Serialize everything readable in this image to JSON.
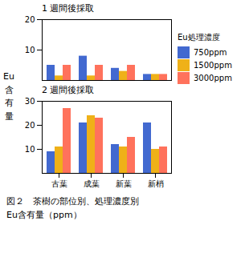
{
  "chart_data": [
    {
      "type": "bar",
      "title": "1 週間後採取",
      "categories": [
        "古葉",
        "成葉",
        "新葉",
        "新梢"
      ],
      "series": [
        {
          "name": "750ppm",
          "values": [
            5.0,
            8.0,
            4.0,
            2.0
          ]
        },
        {
          "name": "1500ppm",
          "values": [
            1.5,
            1.5,
            3.0,
            2.0
          ]
        },
        {
          "name": "3000ppm",
          "values": [
            5.0,
            5.0,
            5.0,
            2.0
          ]
        }
      ],
      "ylim": [
        0,
        20
      ],
      "yticks": [
        10,
        20
      ],
      "tick_labels": "y",
      "ylabel": "Eu\n含\n有\n量",
      "legend": "right",
      "legend_title": "Eu処理濃度"
    },
    {
      "type": "bar",
      "title": "2 週間後採取",
      "categories": [
        "古葉",
        "成葉",
        "新葉",
        "新梢"
      ],
      "series": [
        {
          "name": "750ppm",
          "values": [
            9.0,
            21.0,
            12.0,
            21.0
          ]
        },
        {
          "name": "1500ppm",
          "values": [
            11.0,
            24.0,
            11.0,
            10.0
          ]
        },
        {
          "name": "3000ppm",
          "values": [
            27.0,
            23.0,
            15.0,
            11.0
          ]
        }
      ],
      "ylim": [
        0,
        30
      ],
      "yticks": [
        10,
        20,
        30
      ],
      "caption": "図２　茶樹の部位別、処理濃度別\nEu含有量（ppm）"
    }
  ]
}
